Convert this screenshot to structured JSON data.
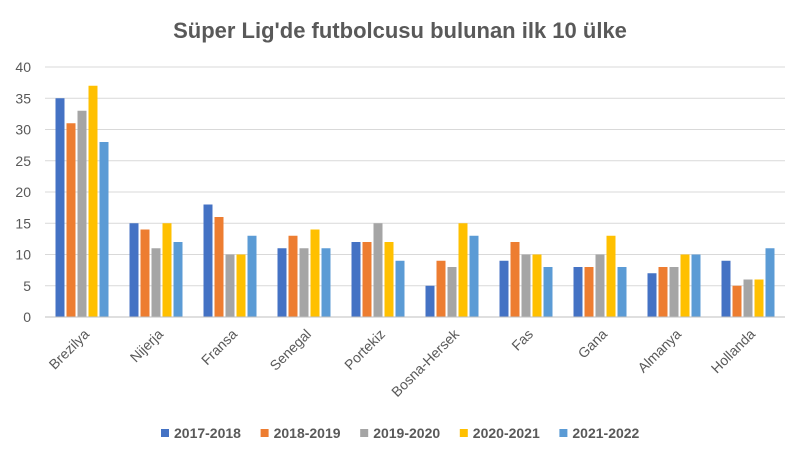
{
  "chart_data": {
    "type": "bar",
    "title": "Süper Lig'de futbolcusu bulunan ilk 10 ülke",
    "xlabel": "",
    "ylabel": "",
    "ylim": [
      0,
      40
    ],
    "yticks": [
      0,
      5,
      10,
      15,
      20,
      25,
      30,
      35,
      40
    ],
    "grid": true,
    "legend_position": "bottom",
    "categories": [
      "Brezilya",
      "Nijerja",
      "Fransa",
      "Senegal",
      "Portekiz",
      "Bosna-Hersek",
      "Fas",
      "Gana",
      "Almanya",
      "Hollanda"
    ],
    "series": [
      {
        "name": "2017-2018",
        "color": "#4472C4",
        "values": [
          35,
          15,
          18,
          11,
          12,
          5,
          9,
          8,
          7,
          9
        ]
      },
      {
        "name": "2018-2019",
        "color": "#ED7D31",
        "values": [
          31,
          14,
          16,
          13,
          12,
          9,
          12,
          8,
          8,
          5
        ]
      },
      {
        "name": "2019-2020",
        "color": "#A5A5A5",
        "values": [
          33,
          11,
          10,
          11,
          15,
          8,
          10,
          10,
          8,
          6
        ]
      },
      {
        "name": "2020-2021",
        "color": "#FFC000",
        "values": [
          37,
          15,
          10,
          14,
          12,
          15,
          10,
          13,
          10,
          6
        ]
      },
      {
        "name": "2021-2022",
        "color": "#5B9BD5",
        "values": [
          28,
          12,
          13,
          11,
          9,
          13,
          8,
          8,
          10,
          11
        ]
      }
    ]
  }
}
